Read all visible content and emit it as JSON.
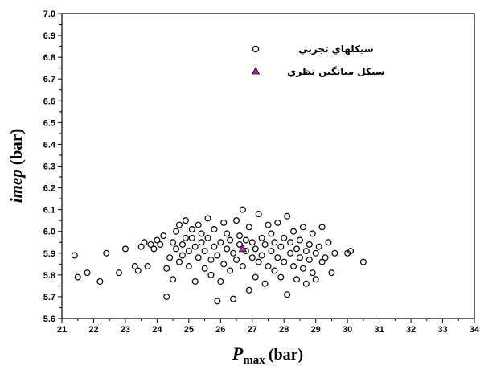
{
  "chart_data": {
    "type": "scatter",
    "xlabel_main": "P",
    "xlabel_sub": "max",
    "xlabel_unit": "(bar)",
    "ylabel_main": "imep",
    "ylabel_unit": "(bar)",
    "xlim": [
      21,
      34
    ],
    "ylim": [
      5.6,
      7.0
    ],
    "x_ticks": [
      "21",
      "22",
      "23",
      "24",
      "25",
      "26",
      "27",
      "28",
      "29",
      "30",
      "31",
      "32",
      "33",
      "34"
    ],
    "y_ticks": [
      "5.6",
      "5.7",
      "5.8",
      "5.9",
      "6.0",
      "6.1",
      "6.2",
      "6.3",
      "6.4",
      "6.5",
      "6.6",
      "6.7",
      "6.8",
      "6.9",
      "7.0"
    ],
    "grid": false,
    "legend_position": "top-right",
    "series": [
      {
        "name": "سيکلهاي تجربي",
        "marker": "circle-open",
        "color": "#000000",
        "points": [
          [
            21.4,
            5.89
          ],
          [
            21.5,
            5.79
          ],
          [
            21.8,
            5.81
          ],
          [
            22.2,
            5.77
          ],
          [
            22.4,
            5.9
          ],
          [
            22.8,
            5.81
          ],
          [
            23.0,
            5.92
          ],
          [
            23.3,
            5.84
          ],
          [
            23.4,
            5.82
          ],
          [
            23.5,
            5.93
          ],
          [
            23.6,
            5.95
          ],
          [
            23.7,
            5.84
          ],
          [
            23.8,
            5.94
          ],
          [
            23.9,
            5.92
          ],
          [
            24.0,
            5.96
          ],
          [
            24.1,
            5.94
          ],
          [
            24.2,
            5.98
          ],
          [
            24.3,
            5.7
          ],
          [
            24.3,
            5.83
          ],
          [
            24.4,
            5.88
          ],
          [
            24.5,
            5.78
          ],
          [
            24.5,
            5.95
          ],
          [
            24.6,
            5.92
          ],
          [
            24.6,
            6.0
          ],
          [
            24.7,
            5.86
          ],
          [
            24.7,
            6.03
          ],
          [
            24.8,
            5.94
          ],
          [
            24.8,
            5.89
          ],
          [
            24.9,
            6.05
          ],
          [
            24.9,
            5.97
          ],
          [
            25.0,
            5.91
          ],
          [
            25.0,
            5.84
          ],
          [
            25.1,
            6.01
          ],
          [
            25.1,
            5.97
          ],
          [
            25.2,
            5.93
          ],
          [
            25.2,
            5.77
          ],
          [
            25.3,
            5.88
          ],
          [
            25.3,
            6.03
          ],
          [
            25.4,
            5.95
          ],
          [
            25.4,
            5.99
          ],
          [
            25.5,
            5.83
          ],
          [
            25.5,
            5.91
          ],
          [
            25.6,
            6.06
          ],
          [
            25.6,
            5.97
          ],
          [
            25.7,
            5.87
          ],
          [
            25.7,
            5.8
          ],
          [
            25.8,
            5.93
          ],
          [
            25.8,
            6.01
          ],
          [
            25.9,
            5.68
          ],
          [
            25.9,
            5.89
          ],
          [
            26.0,
            5.77
          ],
          [
            26.0,
            5.95
          ],
          [
            26.1,
            6.04
          ],
          [
            26.1,
            5.85
          ],
          [
            26.2,
            5.92
          ],
          [
            26.2,
            5.99
          ],
          [
            26.3,
            5.82
          ],
          [
            26.3,
            5.96
          ],
          [
            26.4,
            5.69
          ],
          [
            26.4,
            5.9
          ],
          [
            26.5,
            6.05
          ],
          [
            26.5,
            5.87
          ],
          [
            26.6,
            5.94
          ],
          [
            26.6,
            5.98
          ],
          [
            26.7,
            6.1
          ],
          [
            26.7,
            5.84
          ],
          [
            26.8,
            5.91
          ],
          [
            26.8,
            5.96
          ],
          [
            26.9,
            5.73
          ],
          [
            26.9,
            6.02
          ],
          [
            27.0,
            5.88
          ],
          [
            27.0,
            5.95
          ],
          [
            27.1,
            5.79
          ],
          [
            27.1,
            5.92
          ],
          [
            27.2,
            6.08
          ],
          [
            27.2,
            5.86
          ],
          [
            27.3,
            5.97
          ],
          [
            27.3,
            5.89
          ],
          [
            27.4,
            5.76
          ],
          [
            27.4,
            5.94
          ],
          [
            27.5,
            6.03
          ],
          [
            27.5,
            5.84
          ],
          [
            27.6,
            5.91
          ],
          [
            27.6,
            5.99
          ],
          [
            27.7,
            5.82
          ],
          [
            27.7,
            5.95
          ],
          [
            27.8,
            5.88
          ],
          [
            27.8,
            6.04
          ],
          [
            27.9,
            5.93
          ],
          [
            27.9,
            5.79
          ],
          [
            28.0,
            5.97
          ],
          [
            28.0,
            5.86
          ],
          [
            28.1,
            6.07
          ],
          [
            28.1,
            5.71
          ],
          [
            28.2,
            5.9
          ],
          [
            28.2,
            5.95
          ],
          [
            28.3,
            5.84
          ],
          [
            28.3,
            6.0
          ],
          [
            28.4,
            5.92
          ],
          [
            28.4,
            5.78
          ],
          [
            28.5,
            5.88
          ],
          [
            28.5,
            5.96
          ],
          [
            28.6,
            5.83
          ],
          [
            28.6,
            6.02
          ],
          [
            28.7,
            5.91
          ],
          [
            28.7,
            5.76
          ],
          [
            28.8,
            5.94
          ],
          [
            28.8,
            5.87
          ],
          [
            28.9,
            5.99
          ],
          [
            28.9,
            5.81
          ],
          [
            29.0,
            5.9
          ],
          [
            29.0,
            5.78
          ],
          [
            29.1,
            5.93
          ],
          [
            29.2,
            5.86
          ],
          [
            29.2,
            6.02
          ],
          [
            29.3,
            5.88
          ],
          [
            29.4,
            5.95
          ],
          [
            29.5,
            5.81
          ],
          [
            29.6,
            5.9
          ],
          [
            30.0,
            5.9
          ],
          [
            30.1,
            5.91
          ],
          [
            30.5,
            5.86
          ]
        ]
      },
      {
        "name": "سيکل ميانگين نظري",
        "marker": "triangle-filled",
        "color": "#c020c0",
        "points": [
          [
            26.7,
            5.92
          ]
        ]
      }
    ]
  }
}
